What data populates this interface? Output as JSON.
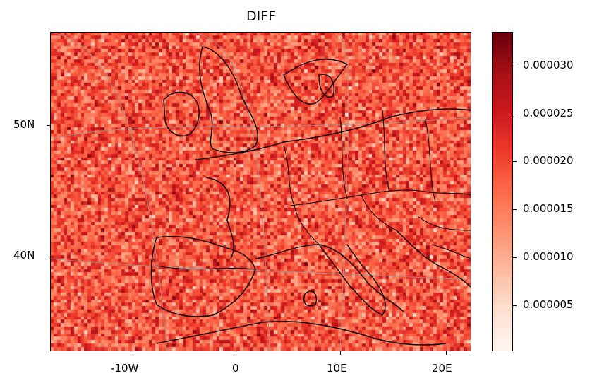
{
  "title": "DIFF",
  "map_data": {
    "variable": "DIFF",
    "colormap": "Reds",
    "colormap_stops": [
      "#fff5f0",
      "#fee0d2",
      "#fcbba1",
      "#fc9272",
      "#fb6a4a",
      "#ef3b2c",
      "#cb181d",
      "#a50f15",
      "#67000d"
    ],
    "value_range": [
      0.0,
      3.34e-05
    ],
    "noise_center_fraction": 0.55,
    "noise_spread_fraction": 0.22,
    "grid_cells": {
      "cols": 124,
      "rows": 94
    },
    "lon_range": [
      -17.5,
      22.5
    ],
    "lat_range": [
      33,
      57.5
    ],
    "coastline_color": "#000000",
    "graticule_color": "#999999",
    "lon_ticks": [
      "-10W",
      "0",
      "10E",
      "20E"
    ],
    "lat_ticks": [
      "50N",
      "40N"
    ]
  },
  "colorbar": {
    "tick_labels": [
      "0.000005",
      "0.000010",
      "0.000015",
      "0.000020",
      "0.000025",
      "0.000030"
    ],
    "tick_values": [
      5e-06,
      1e-05,
      1.5e-05,
      2e-05,
      2.5e-05,
      3e-05
    ]
  }
}
